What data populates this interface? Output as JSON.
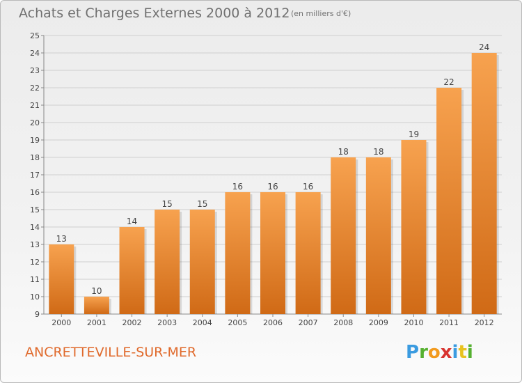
{
  "header": {
    "title": "Achats et Charges Externes 2000 à 2012",
    "unit": "(en milliers d'€)"
  },
  "footer": {
    "commune": "ANCRETTEVILLE-SUR-MER",
    "logo": "Proxiti"
  },
  "colors": {
    "bar_light": "#f7a24f",
    "bar_dark": "#d06a16",
    "title": "#707070",
    "commune": "#e06a2c"
  },
  "chart_data": {
    "type": "bar",
    "categories": [
      "2000",
      "2001",
      "2002",
      "2003",
      "2004",
      "2005",
      "2006",
      "2007",
      "2008",
      "2009",
      "2010",
      "2011",
      "2012"
    ],
    "values": [
      13,
      10,
      14,
      15,
      15,
      16,
      16,
      16,
      18,
      18,
      19,
      22,
      24
    ],
    "title": "Achats et Charges Externes 2000 à 2012",
    "subtitle": "(en milliers d'€)",
    "ylim": [
      9,
      25
    ],
    "yticks": [
      9,
      10,
      11,
      12,
      13,
      14,
      15,
      16,
      17,
      18,
      19,
      20,
      21,
      22,
      23,
      24,
      25
    ],
    "grid": true
  }
}
